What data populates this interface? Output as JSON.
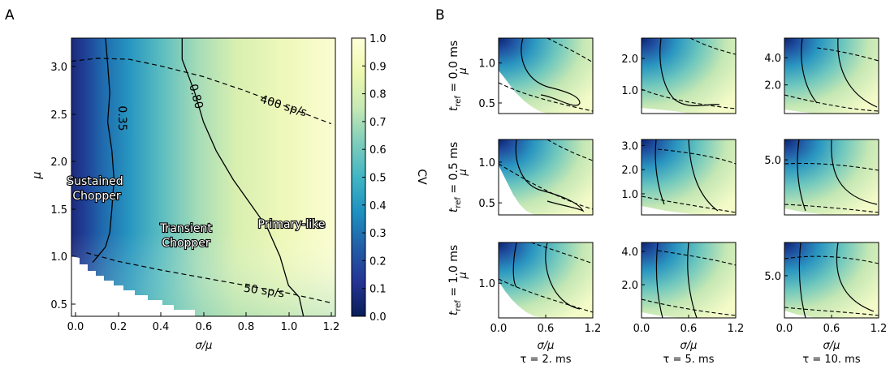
{
  "panel_a": {
    "letter": "A",
    "ylabel": "μ",
    "xlabel": "σ/μ",
    "xticks": [
      "0.0",
      "0.2",
      "0.4",
      "0.6",
      "0.8",
      "1.0",
      "1.2"
    ],
    "yticks": [
      "0.5",
      "1.0",
      "1.5",
      "2.0",
      "2.5",
      "3.0"
    ],
    "contour_labels": [
      "0.35",
      "0.80"
    ],
    "rate_labels": [
      "400 sp/s",
      "50 sp/s"
    ],
    "region_labels": [
      "Sustained",
      "Chopper",
      "Transient",
      "Chopper",
      "Primary-like"
    ]
  },
  "colorbar": {
    "label": "CV",
    "ticks": [
      "0.0",
      "0.1",
      "0.2",
      "0.3",
      "0.4",
      "0.5",
      "0.6",
      "0.7",
      "0.8",
      "0.9",
      "1.0"
    ]
  },
  "panel_b": {
    "letter": "B",
    "rows": [
      {
        "label": "t_ref = 0.0 ms",
        "prefix": "t",
        "sub": "ref",
        "suffix": " = 0.0 ms"
      },
      {
        "label": "t_ref = 0.5 ms",
        "prefix": "t",
        "sub": "ref",
        "suffix": " = 0.5 ms"
      },
      {
        "label": "t_ref = 1.0 ms",
        "prefix": "t",
        "sub": "ref",
        "suffix": " = 1.0 ms"
      }
    ],
    "ylabel": "μ",
    "xlabel": "σ/μ",
    "xticks": [
      "0.0",
      "0.6",
      "1.2"
    ],
    "columns": [
      "τ = 2. ms",
      "τ = 5. ms",
      "τ = 10. ms"
    ],
    "yticks": [
      [
        [
          "1.0",
          "0.5"
        ],
        [
          "2.0",
          "1.0"
        ],
        [
          "4.0",
          "2.0"
        ]
      ],
      [
        [
          "1.0",
          "0.5"
        ],
        [
          "3.0",
          "2.0",
          "1.0"
        ],
        [
          "5.0"
        ]
      ],
      [
        [
          "1.0"
        ],
        [
          "4.0",
          "2.0"
        ],
        [
          "5.0"
        ]
      ]
    ]
  },
  "chart_data": [
    {
      "type": "heatmap",
      "panel": "A",
      "x_quantity": "σ/μ",
      "y_quantity": "μ",
      "xlim": [
        -0.02,
        1.22
      ],
      "ylim": [
        0.38,
        3.27
      ],
      "value_quantity": "CV",
      "value_range": [
        0.0,
        1.0
      ],
      "colormap": [
        "#081d58",
        "#253494",
        "#225ea8",
        "#1d91c0",
        "#41b6c4",
        "#7fcdbb",
        "#c7e9b4",
        "#edf8b1",
        "#ffffd9"
      ],
      "contours_cv": [
        {
          "level": "0.35",
          "points": [
            [
              0.14,
              3.27
            ],
            [
              0.15,
              3.0
            ],
            [
              0.16,
              2.7
            ],
            [
              0.15,
              2.4
            ],
            [
              0.17,
              2.1
            ],
            [
              0.18,
              1.8
            ],
            [
              0.17,
              1.5
            ],
            [
              0.16,
              1.25
            ],
            [
              0.14,
              1.1
            ],
            [
              0.08,
              0.94
            ]
          ]
        },
        {
          "level": "0.80",
          "points": [
            [
              0.5,
              3.27
            ],
            [
              0.5,
              3.05
            ],
            [
              0.56,
              2.7
            ],
            [
              0.6,
              2.4
            ],
            [
              0.66,
              2.1
            ],
            [
              0.74,
              1.8
            ],
            [
              0.82,
              1.55
            ],
            [
              0.9,
              1.3
            ],
            [
              0.96,
              1.0
            ],
            [
              1.0,
              0.7
            ],
            [
              1.05,
              0.58
            ],
            [
              1.07,
              0.38
            ]
          ]
        }
      ],
      "rate_contours": [
        {
          "label": "400 sp/s",
          "points": [
            [
              -0.02,
              3.03
            ],
            [
              0.1,
              3.06
            ],
            [
              0.25,
              3.05
            ],
            [
              0.4,
              2.98
            ],
            [
              0.6,
              2.87
            ],
            [
              0.8,
              2.72
            ],
            [
              1.0,
              2.55
            ],
            [
              1.2,
              2.38
            ]
          ]
        },
        {
          "label": "50 sp/s",
          "points": [
            [
              0.05,
              1.04
            ],
            [
              0.2,
              0.95
            ],
            [
              0.4,
              0.86
            ],
            [
              0.6,
              0.78
            ],
            [
              0.8,
              0.7
            ],
            [
              1.0,
              0.62
            ],
            [
              1.2,
              0.52
            ]
          ]
        }
      ],
      "regions": [
        "Sustained Chopper",
        "Transient Chopper",
        "Primary-like"
      ]
    },
    {
      "type": "heatmap",
      "panel": "B",
      "rows_tref_ms": [
        0.0,
        0.5,
        1.0
      ],
      "columns_tau_ms": [
        2,
        5,
        10
      ],
      "xlim": [
        0.0,
        1.2
      ],
      "x_quantity": "σ/μ",
      "y_quantity": "μ"
    }
  ]
}
